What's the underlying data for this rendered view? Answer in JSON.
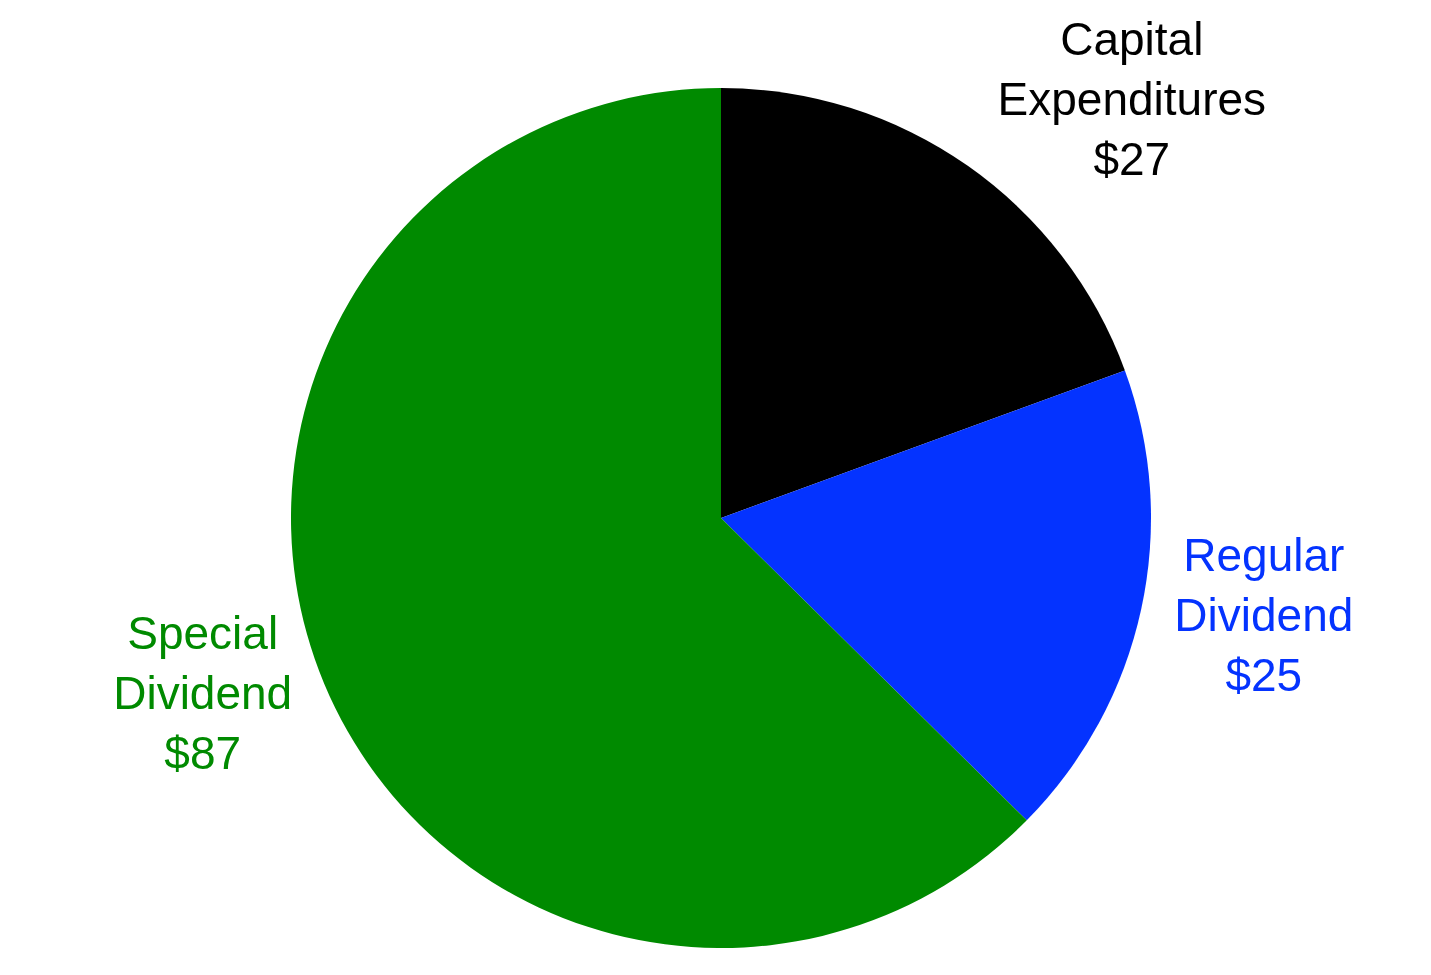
{
  "chart_data": {
    "type": "pie",
    "categories": [
      "Capital Expenditures",
      "Regular Dividend",
      "Special Dividend"
    ],
    "values": [
      27,
      25,
      87
    ],
    "value_labels": [
      "$27",
      "$25",
      "$87"
    ],
    "colors": [
      "#000000",
      "#0433ff",
      "#008a00"
    ],
    "legend": false
  }
}
